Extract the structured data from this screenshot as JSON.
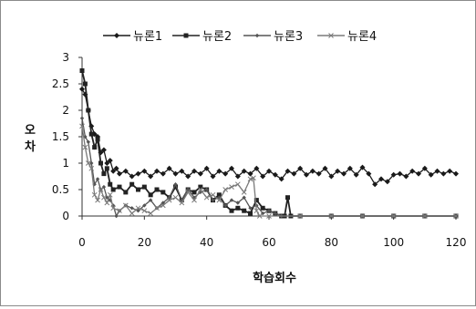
{
  "chart_data": {
    "type": "line",
    "xlabel": "학습회수",
    "ylabel": "오 차",
    "ylabel_chars": [
      "오",
      "차"
    ],
    "xlim": [
      0,
      120
    ],
    "ylim": [
      0,
      3
    ],
    "xticks": [
      0,
      20,
      40,
      60,
      80,
      100,
      120
    ],
    "yticks": [
      0,
      0.5,
      1,
      1.5,
      2,
      2.5,
      3
    ],
    "grid": false,
    "legend_position": "top",
    "series": [
      {
        "name": "뉴론1",
        "color": "#1a1a1a",
        "marker": "diamond",
        "points": [
          [
            0,
            2.4
          ],
          [
            1,
            2.3
          ],
          [
            2,
            2.0
          ],
          [
            3,
            1.7
          ],
          [
            4,
            1.55
          ],
          [
            5,
            1.5
          ],
          [
            6,
            1.2
          ],
          [
            7,
            1.25
          ],
          [
            8,
            1.0
          ],
          [
            9,
            1.05
          ],
          [
            10,
            0.85
          ],
          [
            11,
            0.9
          ],
          [
            12,
            0.8
          ],
          [
            14,
            0.85
          ],
          [
            16,
            0.75
          ],
          [
            18,
            0.8
          ],
          [
            20,
            0.85
          ],
          [
            22,
            0.75
          ],
          [
            24,
            0.85
          ],
          [
            26,
            0.8
          ],
          [
            28,
            0.9
          ],
          [
            30,
            0.8
          ],
          [
            32,
            0.85
          ],
          [
            34,
            0.75
          ],
          [
            36,
            0.85
          ],
          [
            38,
            0.8
          ],
          [
            40,
            0.9
          ],
          [
            42,
            0.75
          ],
          [
            44,
            0.85
          ],
          [
            46,
            0.8
          ],
          [
            48,
            0.9
          ],
          [
            50,
            0.75
          ],
          [
            52,
            0.85
          ],
          [
            54,
            0.8
          ],
          [
            56,
            0.9
          ],
          [
            58,
            0.75
          ],
          [
            60,
            0.85
          ],
          [
            62,
            0.78
          ],
          [
            64,
            0.7
          ],
          [
            66,
            0.85
          ],
          [
            68,
            0.8
          ],
          [
            70,
            0.9
          ],
          [
            72,
            0.78
          ],
          [
            74,
            0.85
          ],
          [
            76,
            0.8
          ],
          [
            78,
            0.9
          ],
          [
            80,
            0.75
          ],
          [
            82,
            0.85
          ],
          [
            84,
            0.8
          ],
          [
            86,
            0.9
          ],
          [
            88,
            0.78
          ],
          [
            90,
            0.92
          ],
          [
            92,
            0.8
          ],
          [
            94,
            0.6
          ],
          [
            96,
            0.7
          ],
          [
            98,
            0.65
          ],
          [
            100,
            0.78
          ],
          [
            102,
            0.8
          ],
          [
            104,
            0.75
          ],
          [
            106,
            0.85
          ],
          [
            108,
            0.8
          ],
          [
            110,
            0.9
          ],
          [
            112,
            0.78
          ],
          [
            114,
            0.85
          ],
          [
            116,
            0.8
          ],
          [
            118,
            0.85
          ],
          [
            120,
            0.8
          ]
        ]
      },
      {
        "name": "뉴론2",
        "color": "#222222",
        "marker": "square",
        "points": [
          [
            0,
            2.75
          ],
          [
            1,
            2.5
          ],
          [
            2,
            2.0
          ],
          [
            3,
            1.55
          ],
          [
            4,
            1.3
          ],
          [
            5,
            1.45
          ],
          [
            6,
            1.0
          ],
          [
            7,
            0.8
          ],
          [
            8,
            0.9
          ],
          [
            9,
            0.6
          ],
          [
            10,
            0.5
          ],
          [
            12,
            0.55
          ],
          [
            14,
            0.45
          ],
          [
            16,
            0.6
          ],
          [
            18,
            0.5
          ],
          [
            20,
            0.55
          ],
          [
            22,
            0.4
          ],
          [
            24,
            0.5
          ],
          [
            26,
            0.45
          ],
          [
            28,
            0.35
          ],
          [
            30,
            0.55
          ],
          [
            32,
            0.3
          ],
          [
            34,
            0.5
          ],
          [
            36,
            0.45
          ],
          [
            38,
            0.55
          ],
          [
            40,
            0.5
          ],
          [
            42,
            0.3
          ],
          [
            44,
            0.4
          ],
          [
            46,
            0.2
          ],
          [
            48,
            0.1
          ],
          [
            50,
            0.15
          ],
          [
            52,
            0.1
          ],
          [
            54,
            0.05
          ],
          [
            56,
            0.3
          ],
          [
            58,
            0.15
          ],
          [
            60,
            0.1
          ],
          [
            62,
            0.05
          ],
          [
            64,
            0.0
          ],
          [
            65,
            0.0
          ],
          [
            66,
            0.35
          ],
          [
            67,
            0.0
          ],
          [
            70,
            0.0
          ],
          [
            80,
            0.0
          ],
          [
            90,
            0.0
          ],
          [
            100,
            0.0
          ],
          [
            110,
            0.0
          ],
          [
            120,
            0.0
          ]
        ]
      },
      {
        "name": "뉴론3",
        "color": "#555555",
        "marker": "diamond-small",
        "points": [
          [
            0,
            1.85
          ],
          [
            1,
            1.5
          ],
          [
            2,
            1.4
          ],
          [
            3,
            1.0
          ],
          [
            4,
            0.6
          ],
          [
            5,
            0.7
          ],
          [
            6,
            0.5
          ],
          [
            7,
            0.55
          ],
          [
            8,
            0.35
          ],
          [
            9,
            0.3
          ],
          [
            10,
            0.2
          ],
          [
            11,
            0.0
          ],
          [
            12,
            0.1
          ],
          [
            14,
            0.2
          ],
          [
            16,
            0.15
          ],
          [
            18,
            0.1
          ],
          [
            20,
            0.2
          ],
          [
            22,
            0.3
          ],
          [
            24,
            0.15
          ],
          [
            26,
            0.25
          ],
          [
            28,
            0.35
          ],
          [
            30,
            0.6
          ],
          [
            32,
            0.3
          ],
          [
            34,
            0.5
          ],
          [
            36,
            0.35
          ],
          [
            38,
            0.45
          ],
          [
            40,
            0.5
          ],
          [
            42,
            0.3
          ],
          [
            44,
            0.35
          ],
          [
            46,
            0.2
          ],
          [
            48,
            0.3
          ],
          [
            50,
            0.25
          ],
          [
            52,
            0.35
          ],
          [
            54,
            0.15
          ],
          [
            56,
            0.2
          ],
          [
            58,
            0.05
          ],
          [
            60,
            0.1
          ],
          [
            62,
            0.05
          ],
          [
            64,
            0.0
          ],
          [
            70,
            0.0
          ],
          [
            80,
            0.0
          ],
          [
            90,
            0.0
          ],
          [
            100,
            0.0
          ],
          [
            110,
            0.0
          ],
          [
            120,
            0.0
          ]
        ]
      },
      {
        "name": "뉴론4",
        "color": "#7a7a7a",
        "marker": "cross",
        "points": [
          [
            0,
            1.7
          ],
          [
            1,
            1.3
          ],
          [
            2,
            1.0
          ],
          [
            3,
            0.9
          ],
          [
            4,
            0.4
          ],
          [
            5,
            0.3
          ],
          [
            6,
            0.5
          ],
          [
            7,
            0.35
          ],
          [
            8,
            0.25
          ],
          [
            9,
            0.4
          ],
          [
            10,
            0.15
          ],
          [
            12,
            0.1
          ],
          [
            14,
            0.2
          ],
          [
            16,
            0.05
          ],
          [
            18,
            0.15
          ],
          [
            20,
            0.1
          ],
          [
            22,
            0.05
          ],
          [
            24,
            0.15
          ],
          [
            26,
            0.2
          ],
          [
            28,
            0.3
          ],
          [
            30,
            0.35
          ],
          [
            32,
            0.25
          ],
          [
            34,
            0.45
          ],
          [
            36,
            0.3
          ],
          [
            38,
            0.5
          ],
          [
            40,
            0.35
          ],
          [
            42,
            0.4
          ],
          [
            44,
            0.3
          ],
          [
            46,
            0.5
          ],
          [
            48,
            0.55
          ],
          [
            50,
            0.6
          ],
          [
            52,
            0.45
          ],
          [
            54,
            0.7
          ],
          [
            55,
            0.72
          ],
          [
            56,
            0.1
          ],
          [
            57,
            0.0
          ],
          [
            60,
            0.0
          ],
          [
            70,
            0.0
          ],
          [
            80,
            0.0
          ],
          [
            90,
            0.0
          ],
          [
            100,
            0.0
          ],
          [
            110,
            0.0
          ],
          [
            120,
            0.0
          ]
        ]
      }
    ]
  }
}
